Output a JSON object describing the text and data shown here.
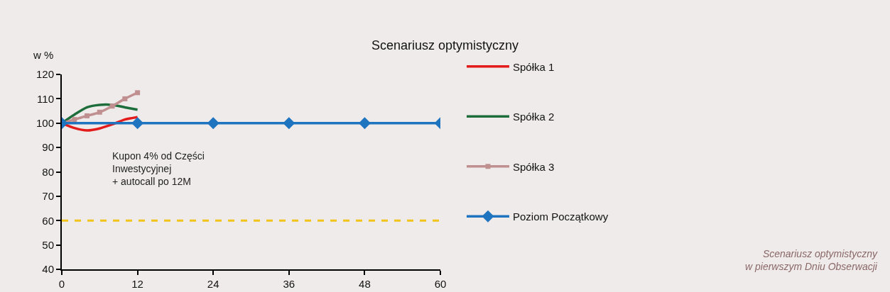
{
  "chart_data": {
    "type": "line",
    "title": "Scenariusz optymistyczny",
    "ylabel": "w %",
    "x": [
      0,
      2,
      4,
      6,
      8,
      10,
      12
    ],
    "series": [
      {
        "name": "Spółka 1",
        "color": "#e31b1b",
        "marker": "none",
        "values": [
          100,
          98,
          97,
          97.8,
          99.5,
          101.5,
          102.5
        ]
      },
      {
        "name": "Spółka 2",
        "color": "#1e6e3c",
        "marker": "none",
        "values": [
          100,
          103.5,
          106.5,
          107.5,
          107.5,
          106.5,
          105.5
        ]
      },
      {
        "name": "Spółka 3",
        "color": "#c09090",
        "marker": "square",
        "values": [
          100,
          101.5,
          103,
          104.5,
          107,
          110,
          112.5
        ]
      },
      {
        "name": "Poziom Początkowy",
        "color": "#1f74c0",
        "marker": "diamond",
        "x": [
          0,
          12,
          24,
          36,
          48,
          60
        ],
        "values": [
          100,
          100,
          100,
          100,
          100,
          100
        ]
      }
    ],
    "ref_lines": [
      {
        "axis": "y",
        "value": 60,
        "color": "#f2c318",
        "line_style": "dashed"
      }
    ],
    "annotations": [
      "Kupon 4% od Części\nInwestycyjnej\n+ autocall po 12M",
      "Scenariusz optymistyczny\nw pierwszym Dniu Obserwacji"
    ],
    "xlim": [
      0,
      60
    ],
    "xticks": [
      0,
      12,
      24,
      36,
      48,
      60
    ],
    "ylim": [
      40,
      120
    ],
    "yticks": [
      40,
      50,
      60,
      70,
      80,
      90,
      100,
      110,
      120
    ],
    "grid": false,
    "legend": "right"
  }
}
